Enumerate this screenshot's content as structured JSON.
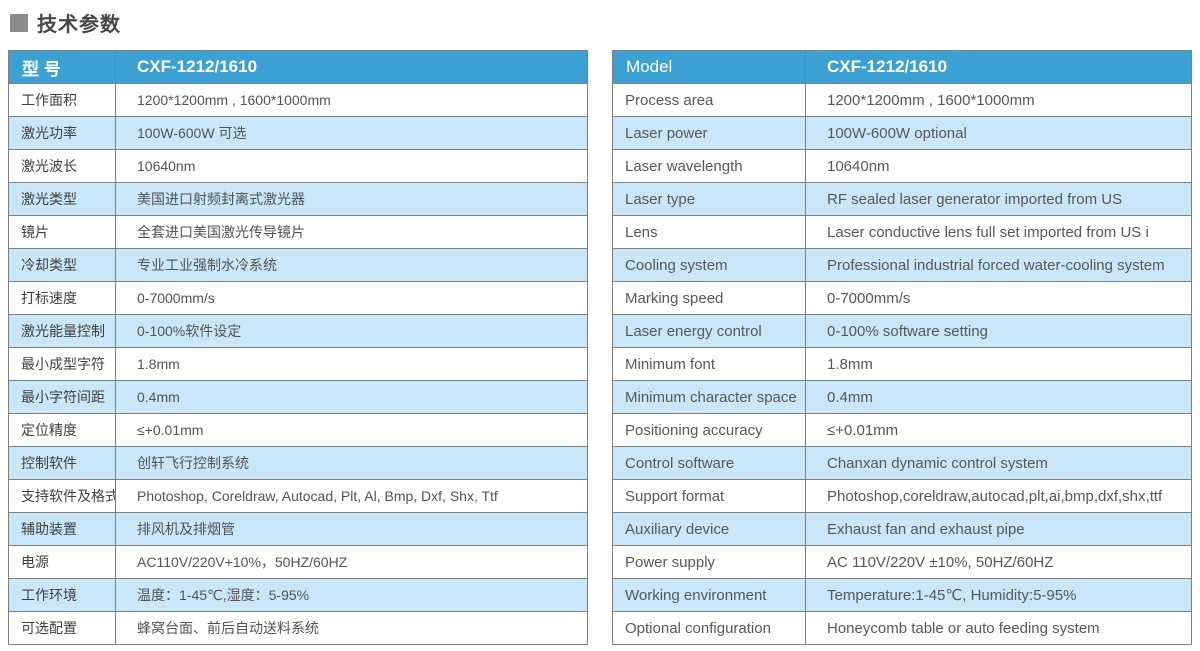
{
  "title": "技术参数",
  "colors": {
    "header_bg": "#3ba1d3",
    "header_text": "#ffffff",
    "stripe_bg": "#c9e7f8",
    "border": "#7f7f7f",
    "title_square": "#8c8c8c"
  },
  "table_cn": {
    "header": {
      "label": "型 号",
      "value": "CXF-1212/1610"
    },
    "rows": [
      {
        "label": "工作面积",
        "value": "1200*1200mm , 1600*1000mm"
      },
      {
        "label": "激光功率",
        "value": "100W-600W 可选"
      },
      {
        "label": "激光波长",
        "value": "10640nm"
      },
      {
        "label": "激光类型",
        "value": "美国进口射频封离式激光器"
      },
      {
        "label": "镜片",
        "value": "全套进口美国激光传导镜片"
      },
      {
        "label": "冷却类型",
        "value": "专业工业强制水冷系统"
      },
      {
        "label": "打标速度",
        "value": "0-7000mm/s"
      },
      {
        "label": "激光能量控制",
        "value": "0-100%软件设定"
      },
      {
        "label": "最小成型字符",
        "value": "1.8mm"
      },
      {
        "label": "最小字符间距",
        "value": "0.4mm"
      },
      {
        "label": "定位精度",
        "value": "≤+0.01mm"
      },
      {
        "label": "控制软件",
        "value": "创轩飞行控制系统"
      },
      {
        "label": "支持软件及格式",
        "value": "Photoshop, Coreldraw, Autocad, Plt, Al, Bmp, Dxf, Shx, Ttf"
      },
      {
        "label": "辅助装置",
        "value": "排风机及排烟管"
      },
      {
        "label": "电源",
        "value": "AC110V/220V+10%，50HZ/60HZ"
      },
      {
        "label": "工作环境",
        "value": "温度：1-45℃,湿度：5-95%"
      },
      {
        "label": "可选配置",
        "value": "蜂窝台面、前后自动送料系统"
      }
    ]
  },
  "table_en": {
    "header": {
      "label": "Model",
      "value": "CXF-1212/1610"
    },
    "rows": [
      {
        "label": "Process area",
        "value": "1200*1200mm , 1600*1000mm"
      },
      {
        "label": "Laser power",
        "value": "100W-600W optional"
      },
      {
        "label": "Laser wavelength",
        "value": "10640nm"
      },
      {
        "label": "Laser type",
        "value": "RF sealed laser generator imported from US"
      },
      {
        "label": "Lens",
        "value": "Laser conductive lens full set imported from US i"
      },
      {
        "label": "Cooling system",
        "value": "Professional industrial forced water-cooling system"
      },
      {
        "label": "Marking speed",
        "value": "0-7000mm/s"
      },
      {
        "label": "Laser energy control",
        "value": "0-100% software setting"
      },
      {
        "label": "Minimum  font",
        "value": "1.8mm"
      },
      {
        "label": "Minimum character space",
        "value": "0.4mm"
      },
      {
        "label": "Positioning accuracy",
        "value": "≤+0.01mm"
      },
      {
        "label": "Control software",
        "value": "Chanxan dynamic control system"
      },
      {
        "label": "Support format",
        "value": "Photoshop,coreldraw,autocad,plt,ai,bmp,dxf,shx,ttf"
      },
      {
        "label": "Auxiliary device",
        "value": "Exhaust fan and exhaust pipe"
      },
      {
        "label": "Power supply",
        "value": "AC 110V/220V ±10%, 50HZ/60HZ"
      },
      {
        "label": "Working environment",
        "value": "Temperature:1-45℃, Humidity:5-95%"
      },
      {
        "label": "Optional configuration",
        "value": "Honeycomb table or auto feeding system"
      }
    ]
  }
}
